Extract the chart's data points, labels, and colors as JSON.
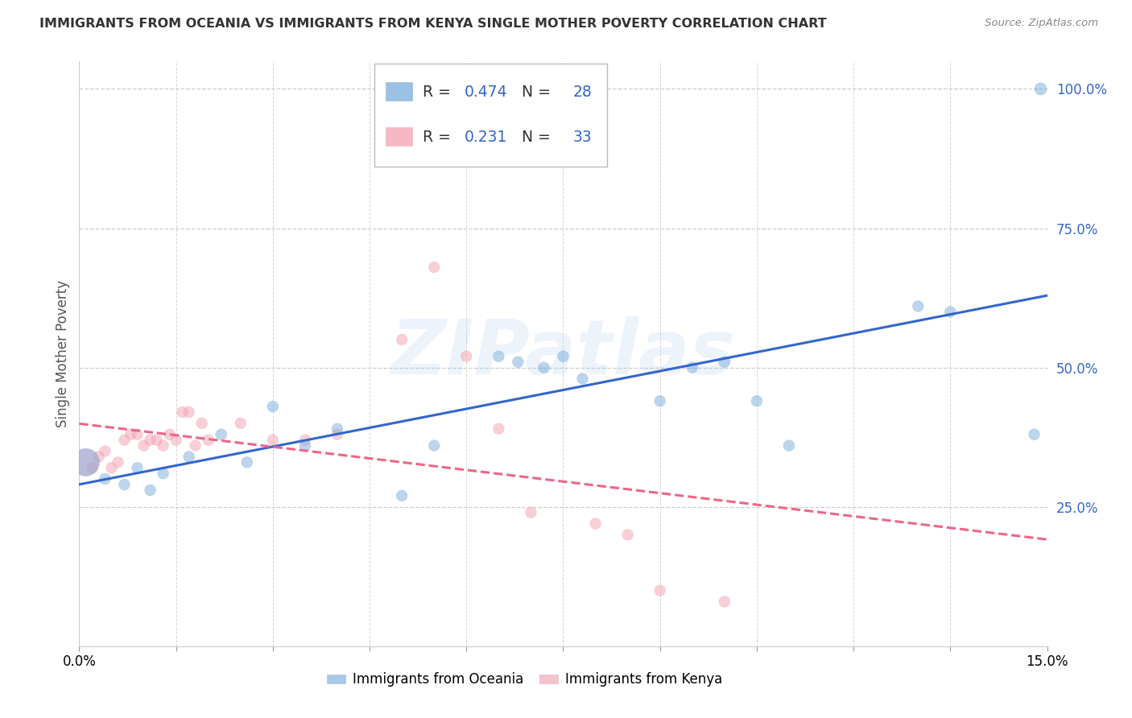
{
  "title": "IMMIGRANTS FROM OCEANIA VS IMMIGRANTS FROM KENYA SINGLE MOTHER POVERTY CORRELATION CHART",
  "source": "Source: ZipAtlas.com",
  "ylabel": "Single Mother Poverty",
  "xlim": [
    0.0,
    0.15
  ],
  "ylim": [
    0.0,
    1.05
  ],
  "yticks": [
    0.25,
    0.5,
    0.75,
    1.0
  ],
  "ytick_labels": [
    "25.0%",
    "50.0%",
    "75.0%",
    "100.0%"
  ],
  "xticks": [
    0.0,
    0.015,
    0.03,
    0.045,
    0.06,
    0.075,
    0.09,
    0.105,
    0.12,
    0.135,
    0.15
  ],
  "xtick_show": [
    0.0,
    0.15
  ],
  "oceania_R": 0.474,
  "oceania_N": 28,
  "kenya_R": 0.231,
  "kenya_N": 33,
  "oceania_color": "#7AACDC",
  "kenya_color": "#F4A0B0",
  "trend_blue": "#3366CC",
  "trend_pink": "#EE6688",
  "background": "#ffffff",
  "grid_color": "#CCCCCC",
  "watermark": "ZIPatlas",
  "oceania_x": [
    0.001,
    0.004,
    0.007,
    0.009,
    0.011,
    0.013,
    0.017,
    0.022,
    0.026,
    0.03,
    0.035,
    0.04,
    0.05,
    0.055,
    0.065,
    0.068,
    0.072,
    0.075,
    0.078,
    0.09,
    0.095,
    0.1,
    0.105,
    0.11,
    0.13,
    0.135,
    0.148,
    0.149
  ],
  "oceania_y": [
    0.33,
    0.3,
    0.29,
    0.32,
    0.28,
    0.31,
    0.34,
    0.38,
    0.33,
    0.43,
    0.36,
    0.39,
    0.27,
    0.36,
    0.52,
    0.51,
    0.5,
    0.52,
    0.48,
    0.44,
    0.5,
    0.51,
    0.44,
    0.36,
    0.61,
    0.6,
    0.38,
    1.0
  ],
  "oceania_sizes": [
    600,
    100,
    100,
    100,
    100,
    100,
    100,
    100,
    100,
    100,
    100,
    100,
    100,
    100,
    100,
    100,
    100,
    100,
    100,
    100,
    100,
    100,
    100,
    100,
    100,
    100,
    100,
    120
  ],
  "kenya_x": [
    0.001,
    0.002,
    0.003,
    0.004,
    0.005,
    0.006,
    0.007,
    0.008,
    0.009,
    0.01,
    0.011,
    0.012,
    0.013,
    0.014,
    0.015,
    0.016,
    0.017,
    0.018,
    0.019,
    0.02,
    0.025,
    0.03,
    0.035,
    0.04,
    0.05,
    0.055,
    0.06,
    0.065,
    0.07,
    0.08,
    0.085,
    0.09,
    0.1
  ],
  "kenya_y": [
    0.33,
    0.32,
    0.34,
    0.35,
    0.32,
    0.33,
    0.37,
    0.38,
    0.38,
    0.36,
    0.37,
    0.37,
    0.36,
    0.38,
    0.37,
    0.42,
    0.42,
    0.36,
    0.4,
    0.37,
    0.4,
    0.37,
    0.37,
    0.38,
    0.55,
    0.68,
    0.52,
    0.39,
    0.24,
    0.22,
    0.2,
    0.1,
    0.08
  ],
  "kenya_sizes": [
    600,
    100,
    100,
    100,
    100,
    100,
    100,
    100,
    100,
    100,
    100,
    100,
    100,
    100,
    100,
    100,
    100,
    100,
    100,
    100,
    100,
    100,
    100,
    100,
    100,
    100,
    100,
    100,
    100,
    100,
    100,
    100,
    100
  ]
}
